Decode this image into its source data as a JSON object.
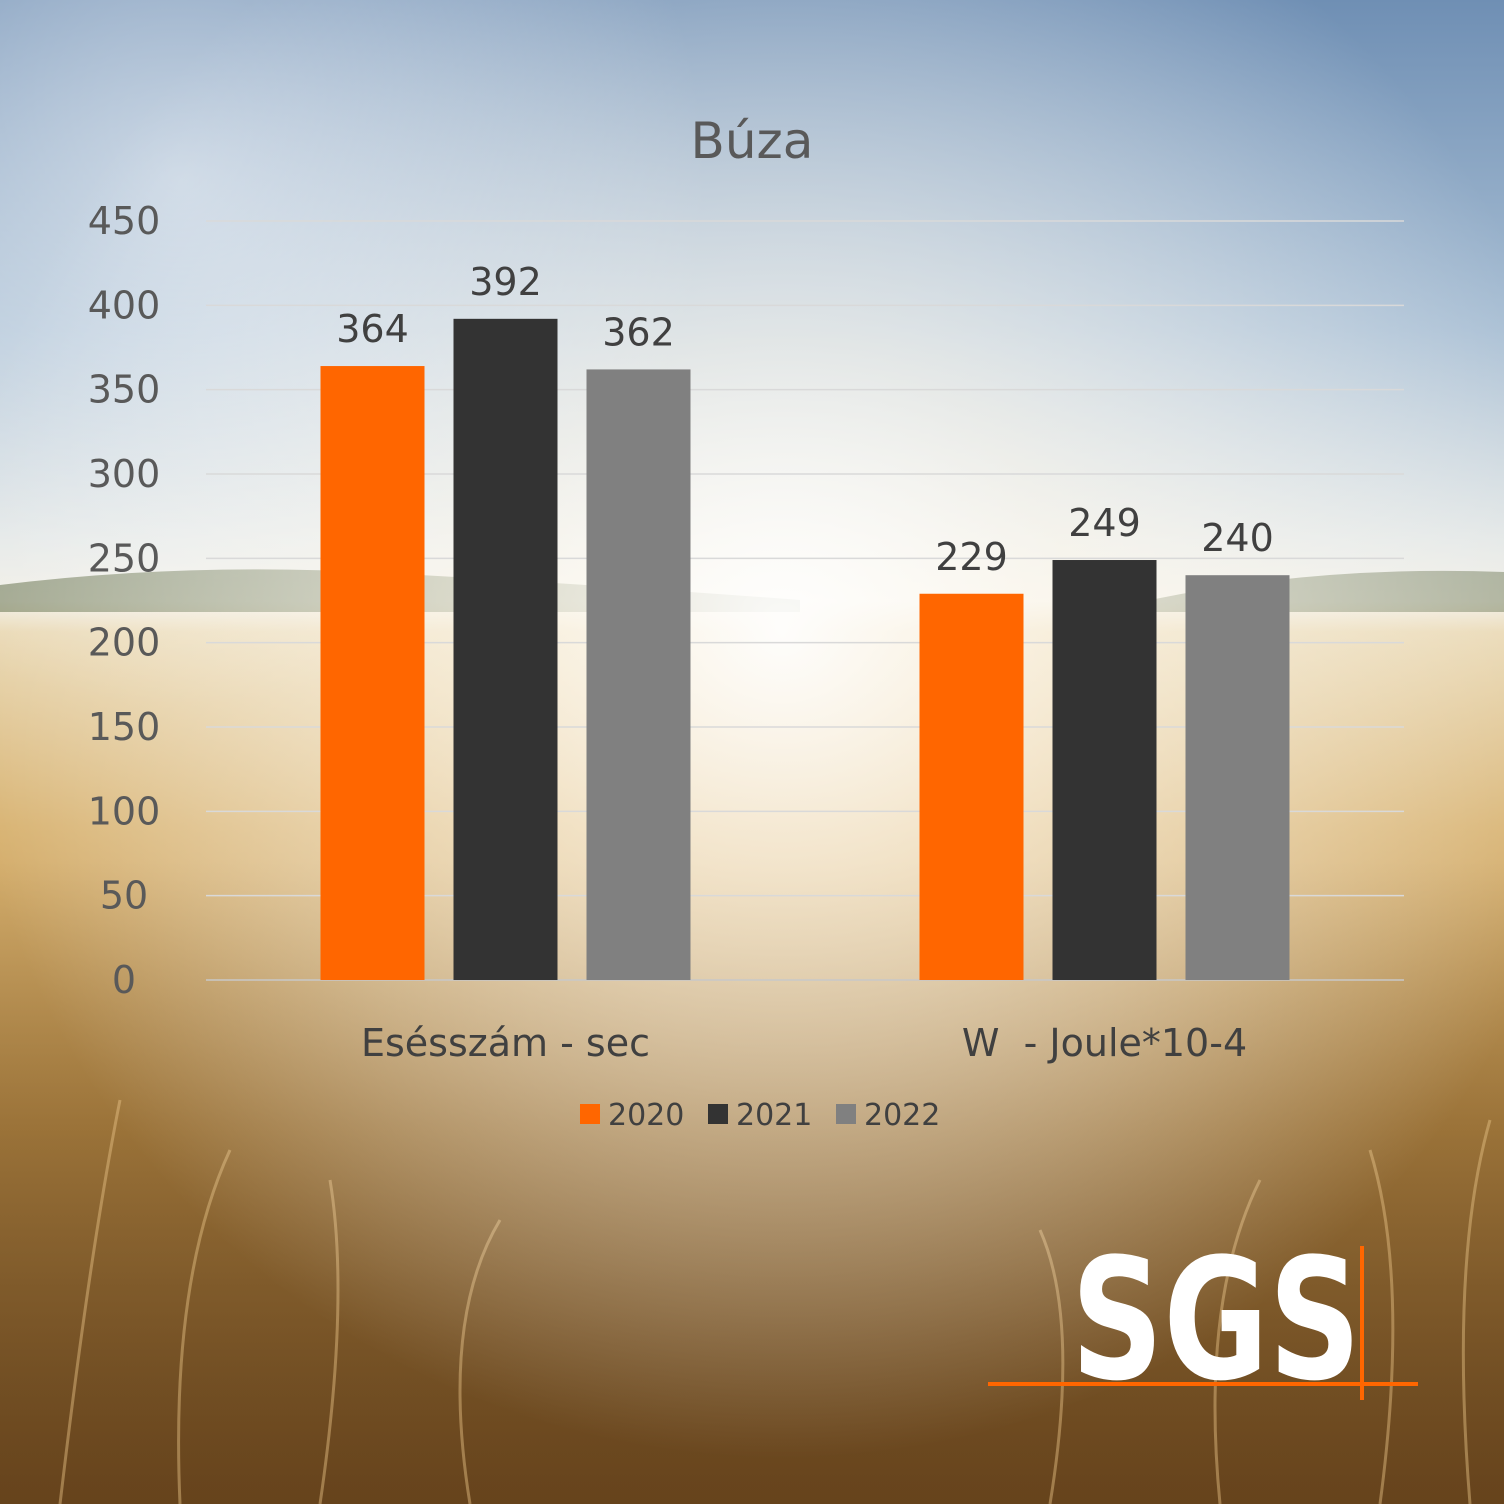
{
  "chart_data": {
    "type": "bar",
    "title": "Búza",
    "xlabel": "",
    "ylabel": "",
    "categories": [
      "Esésszám - sec",
      "W  - Joule*10-4"
    ],
    "series": [
      {
        "name": "2020",
        "color": "#ff6600",
        "values": [
          364,
          229
        ]
      },
      {
        "name": "2021",
        "color": "#333333",
        "values": [
          392,
          249
        ]
      },
      {
        "name": "2022",
        "color": "#808080",
        "values": [
          362,
          240
        ]
      }
    ],
    "ylim": [
      0,
      450
    ],
    "yticks": [
      "0",
      "50",
      "100",
      "150",
      "200",
      "250",
      "300",
      "350",
      "400",
      "450"
    ],
    "grid": true,
    "legend": "bottom",
    "data_labels": true
  },
  "logo": {
    "text": "SGS",
    "color": "#ffffff",
    "accent": "#ff6600"
  }
}
